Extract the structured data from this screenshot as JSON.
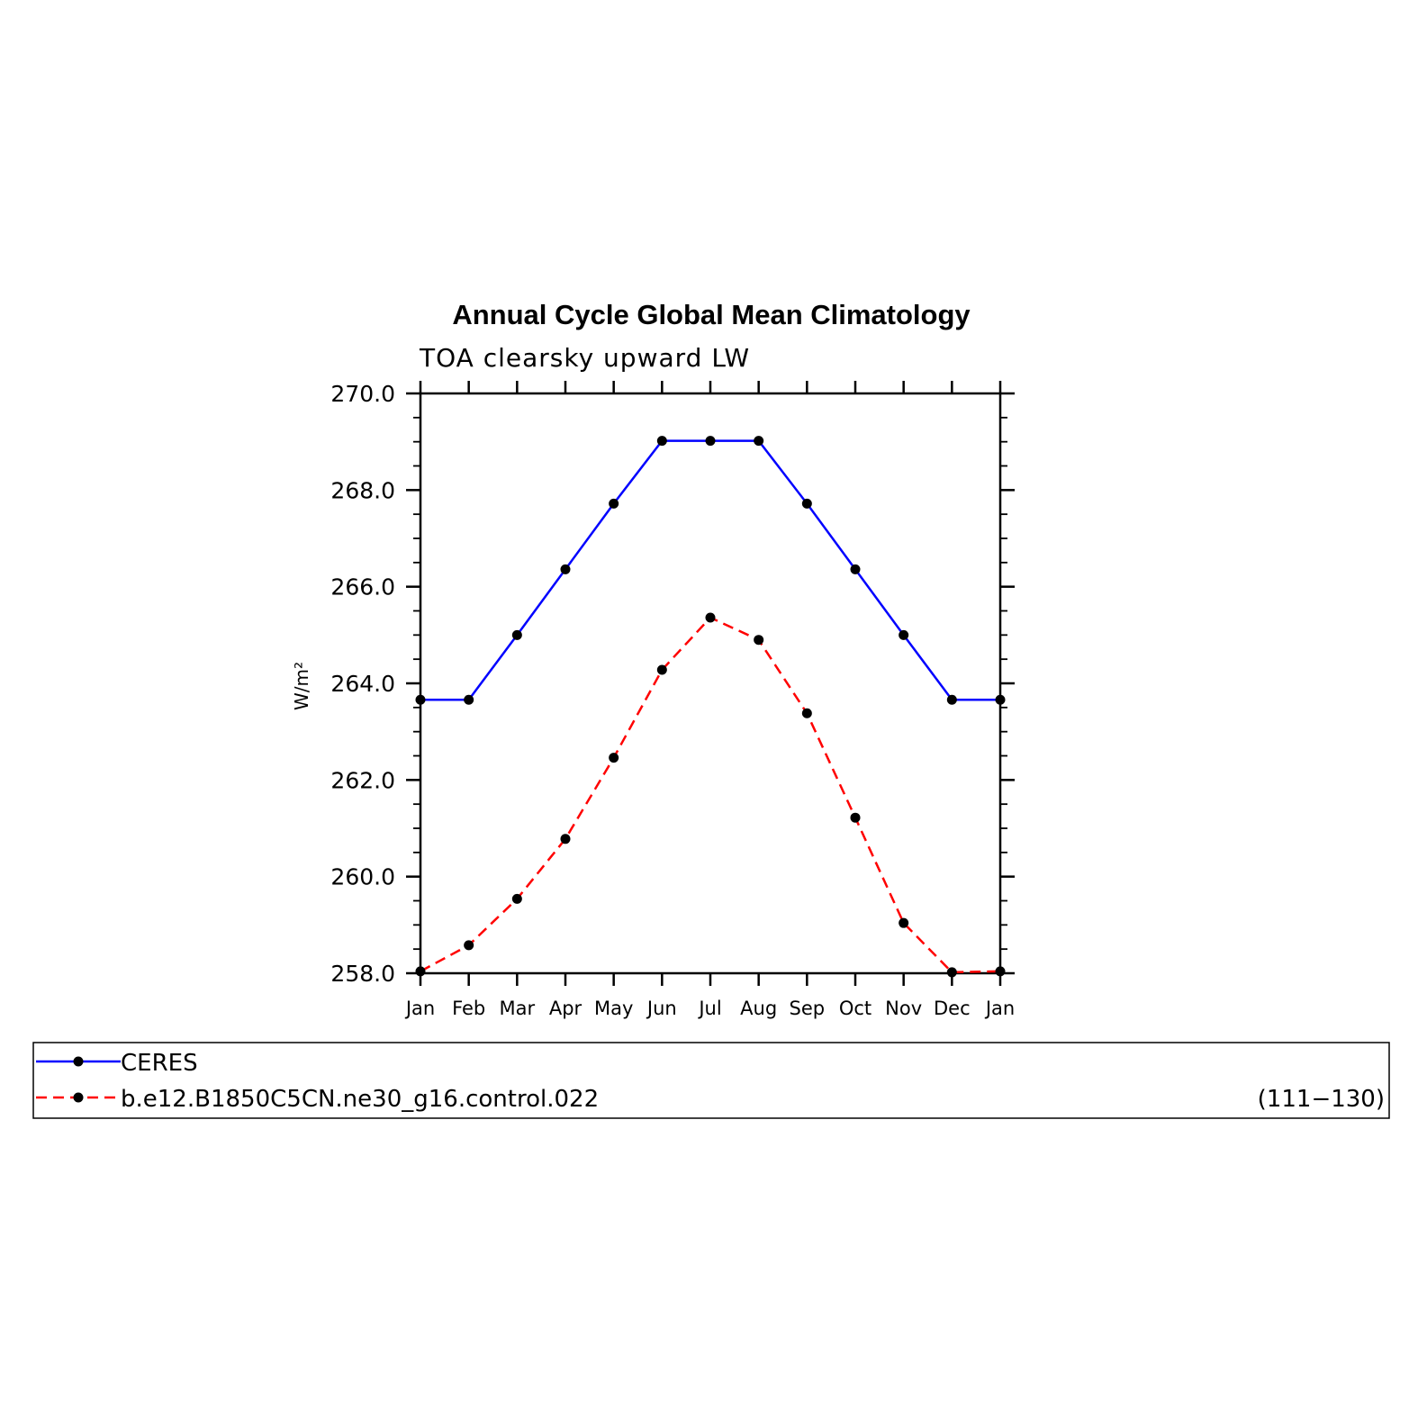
{
  "chart_data": {
    "type": "line",
    "title": "Annual Cycle Global Mean Climatology",
    "subtitle": "TOA clearsky upward LW",
    "ylabel": "W/m²",
    "xlabel": "",
    "categories": [
      "Jan",
      "Feb",
      "Mar",
      "Apr",
      "May",
      "Jun",
      "Jul",
      "Aug",
      "Sep",
      "Oct",
      "Nov",
      "Dec",
      "Jan"
    ],
    "ylim": [
      258.0,
      270.0
    ],
    "yticks": [
      "270.0",
      "268.0",
      "266.0",
      "264.0",
      "262.0",
      "260.0",
      "258.0"
    ],
    "yminor_step": 0.5,
    "grid": false,
    "legend_placement": "bottom",
    "series": [
      {
        "name": "CERES",
        "color": "#0000ff",
        "dash": "solid",
        "marker": "dot",
        "values": [
          263.66,
          263.66,
          265.0,
          266.36,
          267.72,
          269.02,
          269.02,
          269.02,
          267.72,
          266.36,
          265.0,
          263.66,
          263.66
        ]
      },
      {
        "name": "b.e12.B1850C5CN.ne30_g16.control.022",
        "color": "#ff0000",
        "dash": "dashed",
        "marker": "dot",
        "values": [
          258.04,
          258.58,
          259.54,
          260.78,
          262.46,
          264.28,
          265.36,
          264.9,
          263.38,
          261.22,
          259.04,
          258.02,
          258.04
        ]
      }
    ],
    "legend_annotation": "(111−130)"
  }
}
